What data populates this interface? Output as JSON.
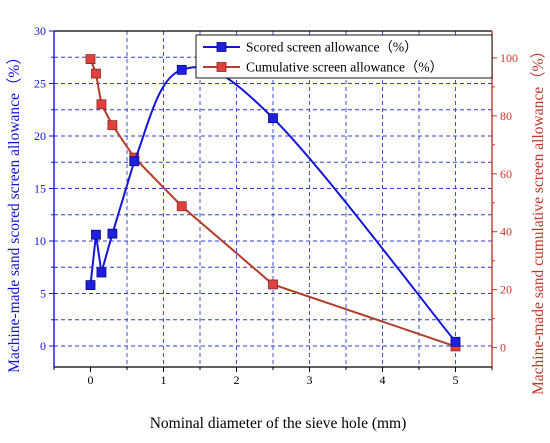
{
  "chart_data": {
    "type": "line",
    "xlabel": "Nominal diameter of the sieve hole (mm)",
    "ylabel_left": "Machine-made sand scored screen allowance（%）",
    "ylabel_right": "Machine-made sand cumulative screen allowance（%）",
    "x_range": [
      -0.5,
      5.5
    ],
    "y_left_range": [
      -2,
      30
    ],
    "y_right_range": [
      -6.7,
      109.3
    ],
    "x_ticks": [
      "0",
      "1",
      "2",
      "3",
      "4",
      "5"
    ],
    "y_left_ticks": [
      "0",
      "5",
      "10",
      "15",
      "20",
      "25",
      "30"
    ],
    "y_right_ticks": [
      "0",
      "20",
      "40",
      "60",
      "80",
      "100"
    ],
    "grid": true,
    "legend_position": "top-right",
    "series": [
      {
        "name": "Scored screen allowance（%）",
        "axis": "left",
        "color": "#1515d6",
        "x": [
          0,
          0.075,
          0.15,
          0.3,
          0.6,
          1.25,
          2.5,
          5
        ],
        "y": [
          5.8,
          10.6,
          7.0,
          10.7,
          17.6,
          26.3,
          21.7,
          0.4
        ]
      },
      {
        "name": "Cumulative screen allowance（%）",
        "axis": "right",
        "color": "#b43c2a",
        "x": [
          0,
          0.075,
          0.15,
          0.3,
          0.6,
          1.25,
          2.5,
          5
        ],
        "y": [
          99.6,
          94.6,
          84.0,
          76.8,
          65.6,
          48.8,
          21.8,
          0.4
        ]
      }
    ]
  },
  "colors": {
    "left_axis": "#1515d6",
    "right_axis": "#c0392b",
    "grid": "#2f3fd0",
    "marker_blue": "#1f1fe0",
    "marker_red": "#e0413c"
  }
}
